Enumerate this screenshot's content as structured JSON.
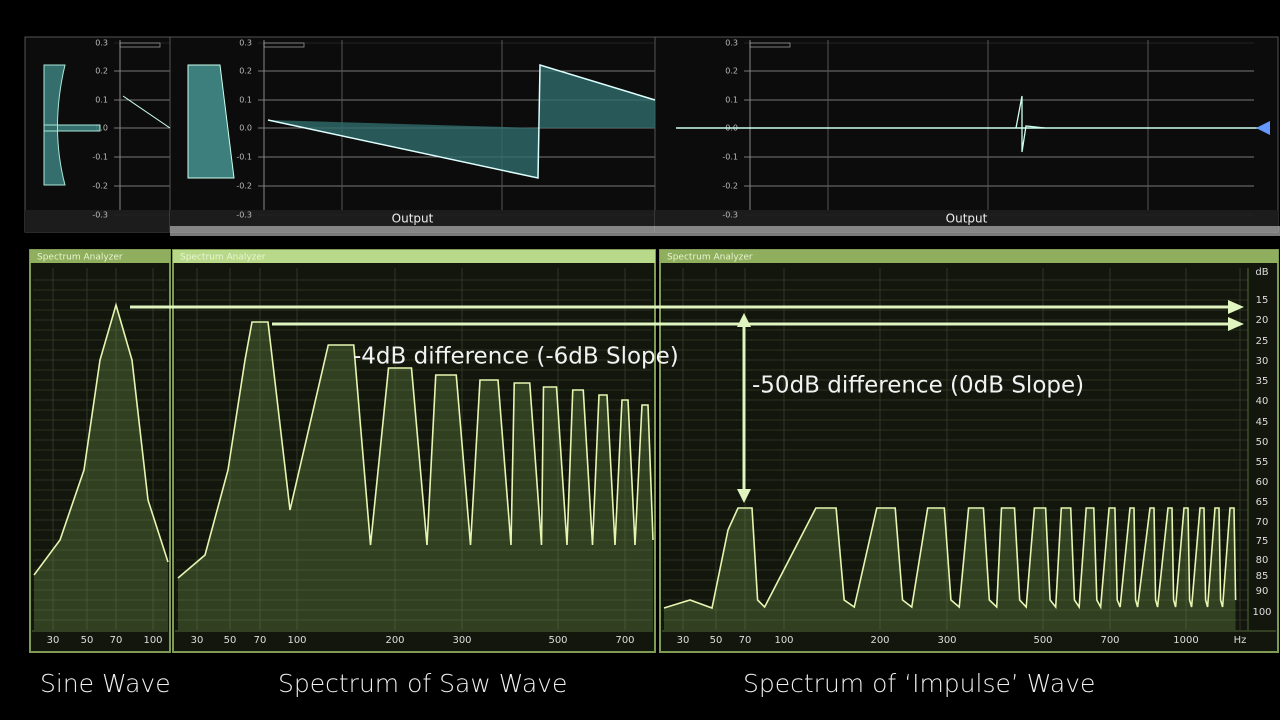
{
  "oscilloscopes": [
    {
      "ticks": [
        "0.3",
        "0.2",
        "0.1",
        "0.0",
        "-0.1",
        "-0.2",
        "-0.3"
      ]
    },
    {
      "ticks": [
        "0.3",
        "0.2",
        "0.1",
        "0.0",
        "-0.1",
        "-0.2",
        "-0.3"
      ],
      "label": "Output"
    },
    {
      "ticks": [
        "0.3",
        "0.2",
        "0.1",
        "0.0",
        "-0.1",
        "-0.2",
        "-0.3"
      ],
      "label": "Output"
    }
  ],
  "analyzers": [
    {
      "title": "Spectrum Analyzer",
      "freq_labels": [
        "30",
        "50",
        "70",
        "100"
      ]
    },
    {
      "title": "Spectrum Analyzer",
      "freq_labels": [
        "30",
        "50",
        "70",
        "100",
        "200",
        "300",
        "500",
        "700"
      ]
    },
    {
      "title": "Spectrum Analyzer",
      "freq_labels": [
        "30",
        "50",
        "70",
        "100",
        "200",
        "300",
        "500",
        "700",
        "1000",
        "Hz"
      ],
      "db_labels": [
        "dB",
        "15",
        "20",
        "25",
        "30",
        "35",
        "40",
        "45",
        "50",
        "55",
        "60",
        "65",
        "70",
        "75",
        "80",
        "85",
        "90",
        "100"
      ]
    }
  ],
  "annotations": [
    "-4dB difference (-6dB Slope)",
    "-50dB difference (0dB Slope)"
  ],
  "captions": [
    "Sine Wave",
    "Spectrum of Saw Wave",
    "Spectrum of ‘Impulse’ Wave"
  ]
}
